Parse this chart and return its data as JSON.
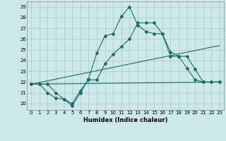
{
  "xlabel": "Humidex (Indice chaleur)",
  "xlim": [
    -0.5,
    23.5
  ],
  "ylim": [
    19.4,
    29.5
  ],
  "xticks": [
    0,
    1,
    2,
    3,
    4,
    5,
    6,
    7,
    8,
    9,
    10,
    11,
    12,
    13,
    14,
    15,
    16,
    17,
    18,
    19,
    20,
    21,
    22,
    23
  ],
  "yticks": [
    20,
    21,
    22,
    23,
    24,
    25,
    26,
    27,
    28,
    29
  ],
  "bg_color": "#cce8e8",
  "line_color": "#1a6b6b",
  "grid_color": "#b0c8c8",
  "line1_x": [
    0,
    1,
    2,
    3,
    4,
    5,
    6,
    7,
    8,
    9,
    10,
    11,
    12,
    13,
    14,
    15,
    16,
    17,
    18,
    19,
    20,
    21,
    22,
    23
  ],
  "line1_y": [
    21.8,
    21.8,
    21.8,
    21.0,
    20.4,
    19.8,
    21.0,
    22.3,
    24.7,
    26.3,
    26.5,
    28.1,
    29.0,
    27.3,
    26.7,
    26.5,
    26.5,
    24.4,
    24.4,
    23.3,
    22.2,
    22.0,
    22.0,
    22.0
  ],
  "line2_x": [
    0,
    1,
    2,
    3,
    4,
    5,
    6,
    7,
    8,
    9,
    10,
    11,
    12,
    13,
    14,
    15,
    16,
    17,
    18,
    19,
    20,
    21,
    22,
    23
  ],
  "line2_y": [
    21.8,
    21.8,
    21.0,
    20.5,
    20.4,
    20.0,
    21.2,
    22.2,
    22.2,
    23.7,
    24.6,
    25.3,
    26.0,
    27.5,
    27.5,
    27.5,
    26.5,
    24.8,
    24.4,
    24.4,
    23.2,
    22.0,
    22.0,
    22.0
  ],
  "trend1_x": [
    0,
    23
  ],
  "trend1_y": [
    21.8,
    25.4
  ],
  "trend2_x": [
    0,
    23
  ],
  "trend2_y": [
    21.8,
    22.0
  ]
}
